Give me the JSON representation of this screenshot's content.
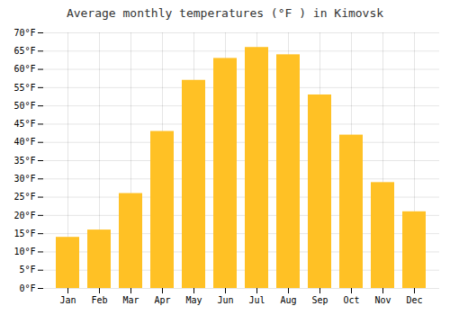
{
  "chart_data": {
    "type": "bar",
    "title": "Average monthly temperatures (°F ) in Kimovsk",
    "categories": [
      "Jan",
      "Feb",
      "Mar",
      "Apr",
      "May",
      "Jun",
      "Jul",
      "Aug",
      "Sep",
      "Oct",
      "Nov",
      "Dec"
    ],
    "values": [
      14,
      16,
      26,
      43,
      57,
      63,
      66,
      64,
      53,
      42,
      29,
      21
    ],
    "color": "#FFC125",
    "ylim": [
      0,
      70
    ],
    "yticks": [
      {
        "value": 0,
        "label": "0°F"
      },
      {
        "value": 5,
        "label": "5°F"
      },
      {
        "value": 10,
        "label": "10°F"
      },
      {
        "value": 15,
        "label": "15°F"
      },
      {
        "value": 20,
        "label": "20°F"
      },
      {
        "value": 25,
        "label": "25°F"
      },
      {
        "value": 30,
        "label": "30°F"
      },
      {
        "value": 35,
        "label": "35°F"
      },
      {
        "value": 40,
        "label": "40°F"
      },
      {
        "value": 45,
        "label": "45°F"
      },
      {
        "value": 50,
        "label": "50°F"
      },
      {
        "value": 55,
        "label": "55°F"
      },
      {
        "value": 60,
        "label": "60°F"
      },
      {
        "value": 65,
        "label": "65°F"
      },
      {
        "value": 70,
        "label": "70°F"
      }
    ],
    "grid": true
  }
}
